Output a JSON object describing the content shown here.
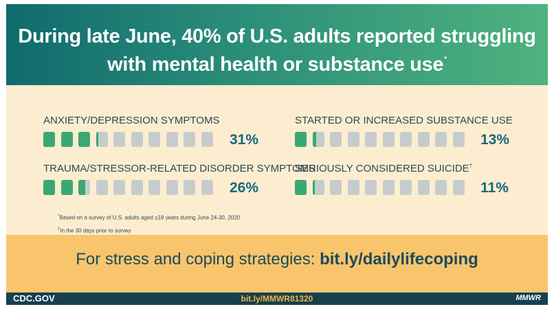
{
  "header": {
    "title_line1": "During late June, 40% of U.S. adults reported struggling",
    "title_line2": "with mental health or substance use",
    "title_marker": "*"
  },
  "stats": [
    {
      "label": "ANXIETY/DEPRESSION SYMPTOMS",
      "marker": "",
      "value_text": "31%",
      "value": 0.31
    },
    {
      "label": "STARTED OR INCREASED SUBSTANCE USE",
      "marker": "",
      "value_text": "13%",
      "value": 0.13
    },
    {
      "label": "TRAUMA/STRESSOR-RELATED DISORDER SYMPTOMS",
      "marker": "",
      "value_text": "26%",
      "value": 0.26
    },
    {
      "label": "SERIOUSLY CONSIDERED SUICIDE",
      "marker": "†",
      "value_text": "11%",
      "value": 0.11
    }
  ],
  "notes": {
    "note1_marker": "*",
    "note1": "Based on a survey of U.S. adults aged ≥18 years during June 24-30, 2020",
    "note2_marker": "†",
    "note2": "In the 30 days prior to survey"
  },
  "cta": {
    "text": "For stress and coping strategies: ",
    "link": "bit.ly/dailylifecoping"
  },
  "footer": {
    "left": "CDC.GOV",
    "center": "bit.ly/MMWR81320",
    "right": "MMWR"
  },
  "colors": {
    "filled": "#3aa874",
    "empty": "#c6cccd",
    "header_start": "#106a6d",
    "header_end": "#4fb27f",
    "cta_bg": "#f8c56d",
    "footer_bg": "#16404f"
  }
}
